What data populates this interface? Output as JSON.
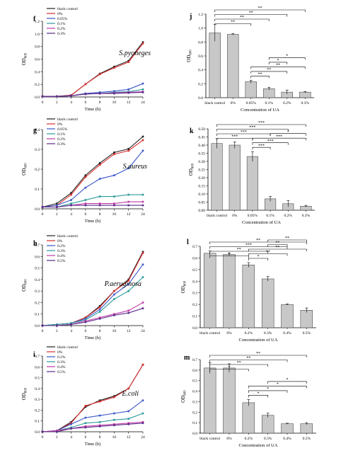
{
  "chart_data": [
    {
      "panel": "f",
      "type": "line",
      "organism": "S.pyoneges",
      "xlabel": "Time (h)",
      "ylabel": "OD600",
      "categories": [
        "0",
        "2",
        "4",
        "6",
        "8",
        "10",
        "12",
        "24"
      ],
      "ylim": [
        0,
        1.3
      ],
      "yticks": [
        "0.0",
        "0.2",
        "0.4",
        "0.6",
        "0.8",
        "1.0",
        "1.2"
      ],
      "series": [
        {
          "name": "black control",
          "color": "#222222",
          "values": [
            0.01,
            0.01,
            0.03,
            0.22,
            0.4,
            0.52,
            0.62,
            0.94
          ]
        },
        {
          "name": "0%",
          "color": "#d92b2b",
          "values": [
            0.01,
            0.01,
            0.03,
            0.22,
            0.39,
            0.5,
            0.6,
            0.92
          ]
        },
        {
          "name": "0.05%",
          "color": "#3a58c8",
          "values": [
            0.01,
            0.01,
            0.02,
            0.06,
            0.08,
            0.1,
            0.13,
            0.23
          ]
        },
        {
          "name": "0.1%",
          "color": "#2a9a9a",
          "values": [
            0.01,
            0.01,
            0.02,
            0.05,
            0.06,
            0.08,
            0.09,
            0.13
          ]
        },
        {
          "name": "0.2%",
          "color": "#c23aa8",
          "values": [
            0.01,
            0.01,
            0.02,
            0.05,
            0.06,
            0.07,
            0.08,
            0.09
          ]
        },
        {
          "name": "0.3%",
          "color": "#5a2a8a",
          "values": [
            0.01,
            0.01,
            0.02,
            0.05,
            0.06,
            0.06,
            0.07,
            0.08
          ]
        }
      ]
    },
    {
      "panel": "g",
      "type": "line",
      "organism": "S.aureus",
      "xlabel": "Time (h)",
      "ylabel": "OD600",
      "categories": [
        "0",
        "2",
        "4",
        "6",
        "8",
        "10",
        "12",
        "24"
      ],
      "ylim": [
        0,
        0.45
      ],
      "yticks": [
        "0.0",
        "0.1",
        "0.2",
        "0.3",
        "0.4"
      ],
      "series": [
        {
          "name": "black control",
          "color": "#222222",
          "values": [
            0.01,
            0.03,
            0.09,
            0.19,
            0.26,
            0.32,
            0.34,
            0.41
          ]
        },
        {
          "name": "0%",
          "color": "#d92b2b",
          "values": [
            0.01,
            0.02,
            0.08,
            0.18,
            0.25,
            0.31,
            0.33,
            0.39
          ]
        },
        {
          "name": "0.05%",
          "color": "#3a58c8",
          "values": [
            0.01,
            0.02,
            0.05,
            0.12,
            0.17,
            0.19,
            0.23,
            0.33
          ]
        },
        {
          "name": "0.1%",
          "color": "#2a9a9a",
          "values": [
            0.01,
            0.01,
            0.03,
            0.05,
            0.07,
            0.07,
            0.08,
            0.08
          ]
        },
        {
          "name": "0.2%",
          "color": "#c23aa8",
          "values": [
            0.01,
            0.01,
            0.02,
            0.03,
            0.03,
            0.03,
            0.04,
            0.04
          ]
        },
        {
          "name": "0.3%",
          "color": "#5a2a8a",
          "values": [
            0.01,
            0.01,
            0.02,
            0.02,
            0.02,
            0.02,
            0.02,
            0.02
          ]
        }
      ]
    },
    {
      "panel": "h",
      "type": "line",
      "organism": "P.aeruginosa",
      "xlabel": "Time (h)",
      "ylabel": "OD600",
      "categories": [
        "0",
        "2",
        "4",
        "6",
        "8",
        "10",
        "12",
        "24"
      ],
      "ylim": [
        0,
        0.7
      ],
      "yticks": [
        "0.0",
        "0.1",
        "0.2",
        "0.3",
        "0.4",
        "0.5",
        "0.6",
        "0.7"
      ],
      "series": [
        {
          "name": "black control",
          "color": "#222222",
          "values": [
            0.0,
            0.01,
            0.02,
            0.07,
            0.17,
            0.3,
            0.4,
            0.64
          ]
        },
        {
          "name": "0%",
          "color": "#d92b2b",
          "values": [
            0.0,
            0.01,
            0.02,
            0.07,
            0.16,
            0.3,
            0.39,
            0.63
          ]
        },
        {
          "name": "0.2%",
          "color": "#3a58c8",
          "values": [
            0.0,
            0.01,
            0.02,
            0.06,
            0.14,
            0.27,
            0.36,
            0.53
          ]
        },
        {
          "name": "0.3%",
          "color": "#2a9a9a",
          "values": [
            0.0,
            0.01,
            0.02,
            0.05,
            0.12,
            0.23,
            0.3,
            0.42
          ]
        },
        {
          "name": "0.4%",
          "color": "#c23aa8",
          "values": [
            0.0,
            0.0,
            0.01,
            0.04,
            0.07,
            0.1,
            0.13,
            0.2
          ]
        },
        {
          "name": "0.5%",
          "color": "#5a2a8a",
          "values": [
            0.0,
            0.0,
            0.01,
            0.03,
            0.06,
            0.09,
            0.11,
            0.15
          ]
        }
      ]
    },
    {
      "panel": "i",
      "type": "line",
      "organism": "E.coli",
      "xlabel": "Time (h)",
      "ylabel": "OD600",
      "categories": [
        "0",
        "2",
        "4",
        "6",
        "8",
        "10",
        "12",
        "24"
      ],
      "ylim": [
        0,
        0.7
      ],
      "yticks": [
        "0.0",
        "0.1",
        "0.2",
        "0.3",
        "0.4",
        "0.5",
        "0.6",
        "0.7"
      ],
      "series": [
        {
          "name": "black control",
          "color": "#222222",
          "values": [
            0.0,
            0.01,
            0.09,
            0.23,
            0.29,
            0.33,
            0.4,
            0.62
          ]
        },
        {
          "name": "0%",
          "color": "#d92b2b",
          "values": [
            0.0,
            0.01,
            0.08,
            0.24,
            0.28,
            0.32,
            0.4,
            0.62
          ]
        },
        {
          "name": "0.2%",
          "color": "#3a58c8",
          "values": [
            0.0,
            0.01,
            0.07,
            0.13,
            0.15,
            0.17,
            0.19,
            0.29
          ]
        },
        {
          "name": "0.3%",
          "color": "#2a9a9a",
          "values": [
            0.0,
            0.01,
            0.04,
            0.08,
            0.09,
            0.11,
            0.12,
            0.17
          ]
        },
        {
          "name": "0.4%",
          "color": "#c23aa8",
          "values": [
            0.0,
            0.01,
            0.03,
            0.05,
            0.06,
            0.07,
            0.08,
            0.09
          ]
        },
        {
          "name": "0.5%",
          "color": "#5a2a8a",
          "values": [
            0.0,
            0.0,
            0.03,
            0.04,
            0.05,
            0.06,
            0.07,
            0.08
          ]
        }
      ]
    },
    {
      "panel": "j",
      "type": "bar",
      "xlabel": "Concentration of UA",
      "ylabel": "OD600",
      "categories": [
        "black control",
        "0%",
        "0.05%",
        "0.1%",
        "0.2%",
        "0.3%"
      ],
      "values": [
        0.93,
        0.91,
        0.23,
        0.13,
        0.08,
        0.08
      ],
      "errors": [
        0.12,
        0.01,
        0.02,
        0.02,
        0.03,
        0.01
      ],
      "ylim": [
        0,
        1.2
      ],
      "yticks": [
        "0.0",
        "0.2",
        "0.4",
        "0.6",
        "0.8",
        "1.0",
        "1.2"
      ],
      "annotations": [
        {
          "from": 0,
          "to": 2,
          "label": "**"
        },
        {
          "from": 0,
          "to": 3,
          "label": "**"
        },
        {
          "from": 0,
          "to": 4,
          "label": "**"
        },
        {
          "from": 0,
          "to": 5,
          "label": "**"
        },
        {
          "from": 2,
          "to": 3,
          "label": "**"
        },
        {
          "from": 2,
          "to": 4,
          "label": "**"
        },
        {
          "from": 2,
          "to": 5,
          "label": "**"
        },
        {
          "from": 3,
          "to": 4,
          "label": "*"
        },
        {
          "from": 3,
          "to": 5,
          "label": "*"
        }
      ]
    },
    {
      "panel": "k",
      "type": "bar",
      "xlabel": "Concentration of UA",
      "ylabel": "OD600",
      "categories": [
        "black control",
        "0%",
        "0.05%",
        "0.1%",
        "0.2%",
        "0.3%"
      ],
      "values": [
        0.41,
        0.4,
        0.33,
        0.07,
        0.04,
        0.025
      ],
      "errors": [
        0.03,
        0.02,
        0.03,
        0.015,
        0.02,
        0.005
      ],
      "ylim": [
        0,
        0.5
      ],
      "yticks": [
        "0.00",
        "0.05",
        "0.10",
        "0.15",
        "0.20",
        "0.25",
        "0.30",
        "0.35",
        "0.40",
        "0.45",
        "0.50"
      ],
      "annotations": [
        {
          "from": 0,
          "to": 2,
          "label": "***"
        },
        {
          "from": 0,
          "to": 3,
          "label": "***"
        },
        {
          "from": 0,
          "to": 4,
          "label": "***"
        },
        {
          "from": 0,
          "to": 5,
          "label": "***"
        },
        {
          "from": 2,
          "to": 3,
          "label": "***"
        },
        {
          "from": 2,
          "to": 4,
          "label": "***"
        },
        {
          "from": 2,
          "to": 5,
          "label": "***"
        },
        {
          "from": 3,
          "to": 5,
          "label": "*"
        }
      ]
    },
    {
      "panel": "l",
      "type": "bar",
      "xlabel": "Concentration of UA",
      "ylabel": "OD600",
      "categories": [
        "black control",
        "0%",
        "0.2%",
        "0.3%",
        "0.4%",
        "0.5%"
      ],
      "values": [
        0.64,
        0.63,
        0.54,
        0.42,
        0.2,
        0.15
      ],
      "errors": [
        0.02,
        0.01,
        0.02,
        0.02,
        0.005,
        0.02
      ],
      "ylim": [
        0,
        0.7
      ],
      "yticks": [
        "0.0",
        "0.1",
        "0.2",
        "0.3",
        "0.4",
        "0.5",
        "0.6",
        "0.7"
      ],
      "annotations": [
        {
          "from": 0,
          "to": 2,
          "label": "*"
        },
        {
          "from": 0,
          "to": 3,
          "label": "**"
        },
        {
          "from": 0,
          "to": 4,
          "label": "***"
        },
        {
          "from": 0,
          "to": 5,
          "label": "**"
        },
        {
          "from": 2,
          "to": 3,
          "label": "*"
        },
        {
          "from": 2,
          "to": 4,
          "label": "**"
        },
        {
          "from": 2,
          "to": 5,
          "label": "**"
        },
        {
          "from": 3,
          "to": 4,
          "label": "**"
        },
        {
          "from": 3,
          "to": 5,
          "label": "**"
        }
      ]
    },
    {
      "panel": "m",
      "type": "bar",
      "xlabel": "Concentration of UA",
      "ylabel": "OD600",
      "categories": [
        "black control",
        "0%",
        "0.2%",
        "0.3%",
        "0.4%",
        "0.5%"
      ],
      "values": [
        0.62,
        0.62,
        0.29,
        0.17,
        0.09,
        0.09
      ],
      "errors": [
        0.05,
        0.04,
        0.03,
        0.02,
        0.005,
        0.01
      ],
      "ylim": [
        0,
        0.7
      ],
      "yticks": [
        "0.0",
        "0.1",
        "0.2",
        "0.3",
        "0.4",
        "0.5",
        "0.6",
        "0.7"
      ],
      "annotations": [
        {
          "from": 0,
          "to": 2,
          "label": "*"
        },
        {
          "from": 0,
          "to": 3,
          "label": "**"
        },
        {
          "from": 0,
          "to": 4,
          "label": "**"
        },
        {
          "from": 0,
          "to": 5,
          "label": "**"
        },
        {
          "from": 2,
          "to": 3,
          "label": "*"
        },
        {
          "from": 2,
          "to": 4,
          "label": "*"
        },
        {
          "from": 2,
          "to": 5,
          "label": "*"
        },
        {
          "from": 3,
          "to": 5,
          "label": "*"
        }
      ]
    }
  ]
}
